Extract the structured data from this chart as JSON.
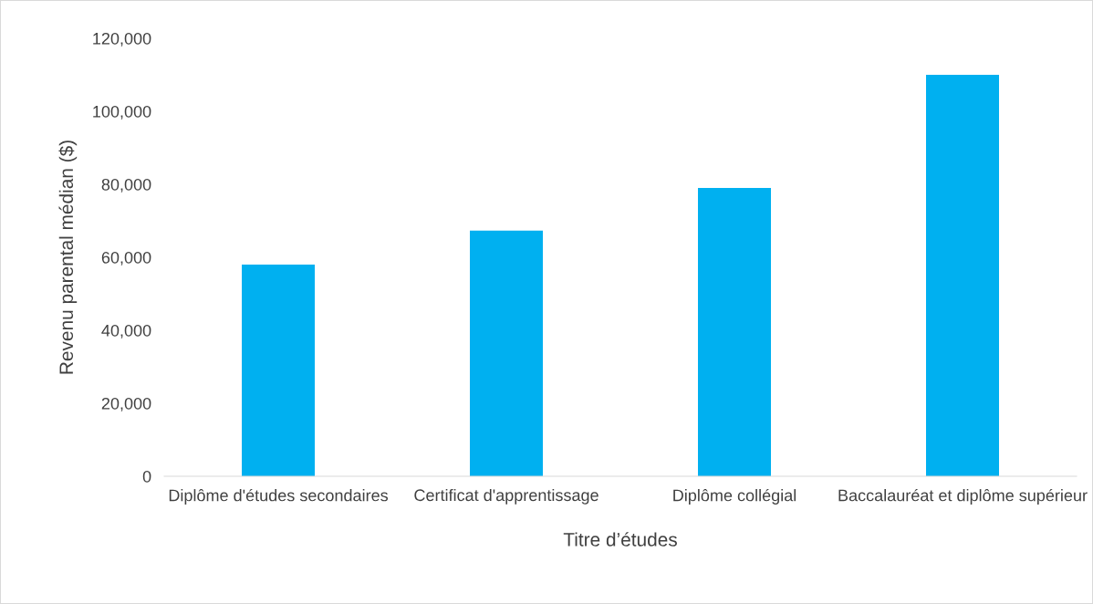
{
  "chart_data": {
    "type": "bar",
    "xlabel": "Titre d’études",
    "ylabel": "Revenu parental médian ($)",
    "categories": [
      "Diplôme d'études secondaires",
      "Certificat d'apprentissage",
      "Diplôme collégial",
      "Baccalauréat et diplôme supérieur"
    ],
    "values": [
      58000,
      67300,
      79000,
      110000
    ],
    "color": "#00b0f0",
    "ylim": [
      0,
      120000
    ],
    "yticks": [
      {
        "value": 0,
        "label": "0"
      },
      {
        "value": 20000,
        "label": "20,000"
      },
      {
        "value": 40000,
        "label": "40,000"
      },
      {
        "value": 60000,
        "label": "60,000"
      },
      {
        "value": 80000,
        "label": "80,000"
      },
      {
        "value": 100000,
        "label": "100,000"
      },
      {
        "value": 120000,
        "label": "120,000"
      }
    ],
    "grid": false
  }
}
